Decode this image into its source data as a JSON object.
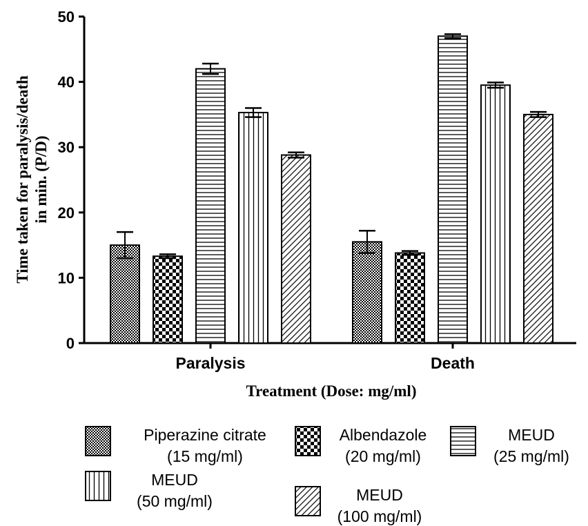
{
  "chart_data": {
    "type": "bar",
    "categories": [
      "Paralysis",
      "Death"
    ],
    "xlabel": "Treatment (Dose: mg/ml)",
    "ylabel_lines": [
      "Time taken for paralysis/death",
      "in min. (P/D)"
    ],
    "ylim": [
      0,
      50
    ],
    "yticks": [
      0,
      10,
      20,
      30,
      40,
      50
    ],
    "grid": false,
    "legend_position": "bottom",
    "series": [
      {
        "name_lines": [
          "Piperazine citrate",
          "(15 mg/ml)"
        ],
        "pattern": "fine-checker",
        "values": [
          15.0,
          15.5
        ],
        "errors": [
          2.0,
          1.7
        ]
      },
      {
        "name_lines": [
          "Albendazole",
          "(20 mg/ml)"
        ],
        "pattern": "checker",
        "values": [
          13.3,
          13.8
        ],
        "errors": [
          0.3,
          0.3
        ]
      },
      {
        "name_lines": [
          "MEUD",
          "(25 mg/ml)"
        ],
        "pattern": "horizontal-lines",
        "values": [
          42.0,
          47.0
        ],
        "errors": [
          0.8,
          0.3
        ]
      },
      {
        "name_lines": [
          "MEUD",
          "(50 mg/ml)"
        ],
        "pattern": "vertical-lines",
        "values": [
          35.3,
          39.5
        ],
        "errors": [
          0.7,
          0.4
        ]
      },
      {
        "name_lines": [
          "MEUD",
          "(100 mg/ml)"
        ],
        "pattern": "diagonal-lines",
        "values": [
          28.8,
          35.0
        ],
        "errors": [
          0.4,
          0.4
        ]
      }
    ]
  }
}
